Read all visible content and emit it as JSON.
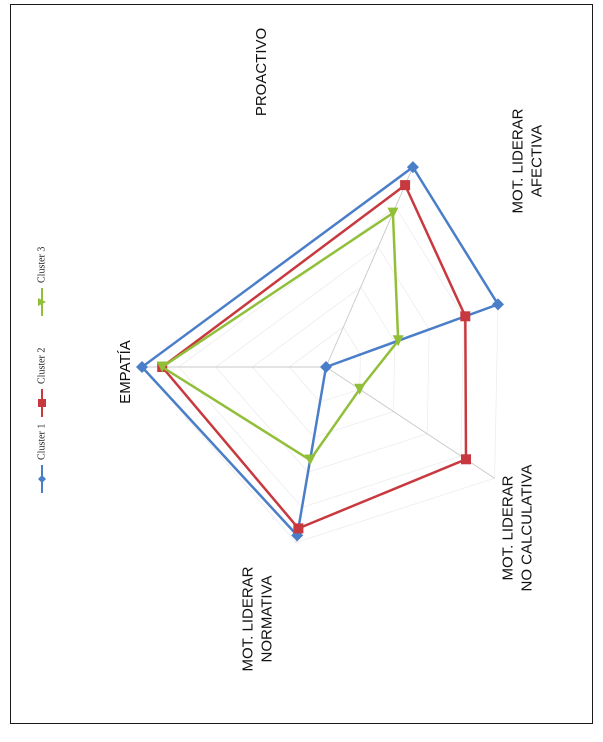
{
  "chart_data": {
    "type": "radar",
    "title": "",
    "axes": [
      "PROACTIVO",
      "MOT. LIDERAR AFECTIVA",
      "MOT. LIDERAR NO CALCULATIVA",
      "MOT. LIDERAR NORMATIVA",
      "EMPATÍA"
    ],
    "axis_label_lines": [
      [
        "PROACTIVO"
      ],
      [
        "MOT. LIDERAR",
        "AFECTIVA"
      ],
      [
        "MOT. LIDERAR",
        "NO CALCULATIVA"
      ],
      [
        "MOT. LIDERAR",
        "NORMATIVA"
      ],
      [
        "EMPATÍA"
      ]
    ],
    "range": [
      0,
      1
    ],
    "series": [
      {
        "name": "Cluster 1",
        "color": "#4a7ec8",
        "marker": "diamond",
        "values": [
          1.0,
          1.0,
          0.0,
          0.96,
          1.0
        ]
      },
      {
        "name": "Cluster 2",
        "color": "#c8393f",
        "marker": "square",
        "values": [
          0.91,
          0.81,
          0.83,
          0.92,
          0.89
        ]
      },
      {
        "name": "Cluster 3",
        "color": "#92bf3a",
        "marker": "triangle",
        "values": [
          0.77,
          0.42,
          0.2,
          0.53,
          0.89
        ]
      }
    ],
    "legend_position": "left",
    "rotation": "rotated 90° counter-clockwise"
  }
}
